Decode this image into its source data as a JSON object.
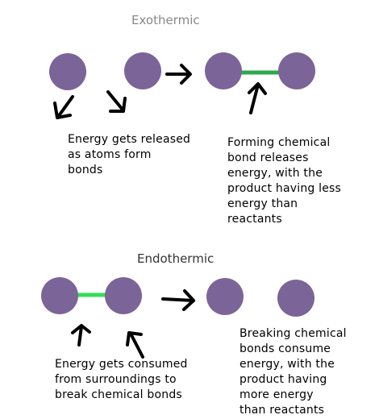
{
  "exothermic": {
    "title": "Exothermic",
    "caption_left": [
      "Energy gets released",
      "as atoms form",
      "bonds"
    ],
    "caption_right": [
      "Forming chemical",
      "bond releases",
      "energy, with the",
      "product having less",
      "energy than",
      "reactants"
    ]
  },
  "endothermic": {
    "title": "Endothermic",
    "caption_left": [
      "Energy gets consumed",
      "from surroundings to",
      "break chemical bonds"
    ],
    "caption_right": [
      "Breaking chemical",
      "bonds consume",
      "energy, with the",
      "product having",
      "more energy",
      "than reactants"
    ]
  },
  "colors": {
    "atom": "#7b6497",
    "bond_exo": "#2ea84c",
    "bond_endo": "#33dd55",
    "arrow": "#000000",
    "title_exo": "#888888",
    "title_endo": "#333333"
  }
}
